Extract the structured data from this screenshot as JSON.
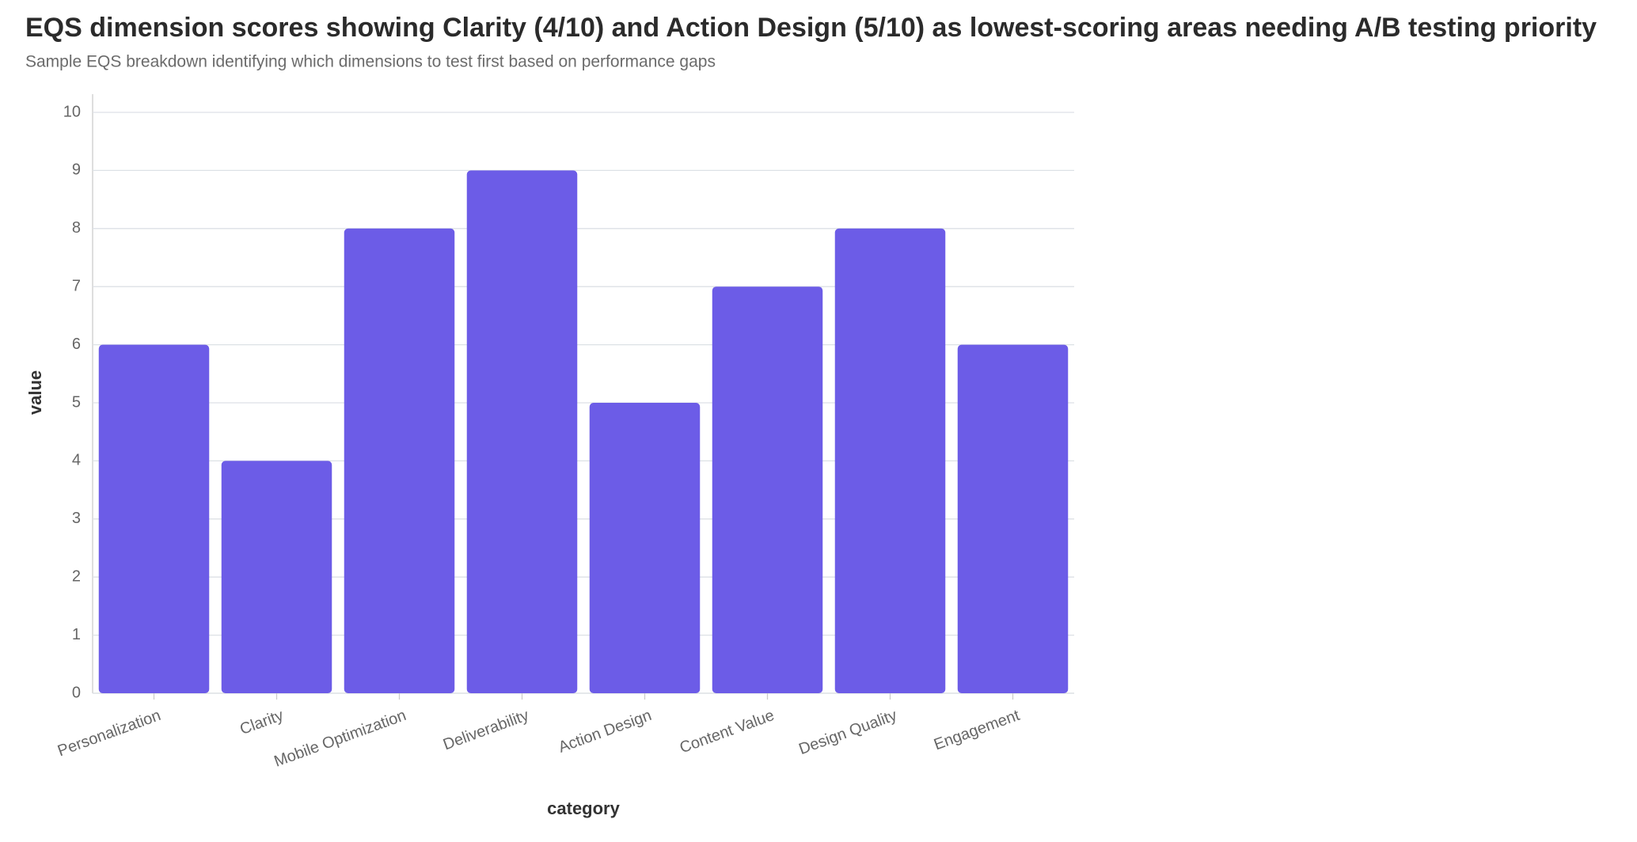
{
  "chart_data": {
    "type": "bar",
    "title": "EQS dimension scores showing Clarity (4/10) and Action Design (5/10) as lowest-scoring areas needing A/B testing priority",
    "subtitle": "Sample EQS breakdown identifying which dimensions to test first based on performance gaps",
    "x_label": "category",
    "y_label": "value",
    "categories": [
      "Personalization",
      "Clarity",
      "Mobile Optimization",
      "Deliverability",
      "Action Design",
      "Content Value",
      "Design Quality",
      "Engagement"
    ],
    "values": [
      6,
      4,
      8,
      9,
      5,
      7,
      8,
      6
    ],
    "color": "#6c5ce7",
    "ylim": [
      0,
      10
    ],
    "yticks": [
      0,
      1,
      2,
      3,
      4,
      5,
      6,
      7,
      8,
      9,
      10
    ],
    "grid": true
  }
}
